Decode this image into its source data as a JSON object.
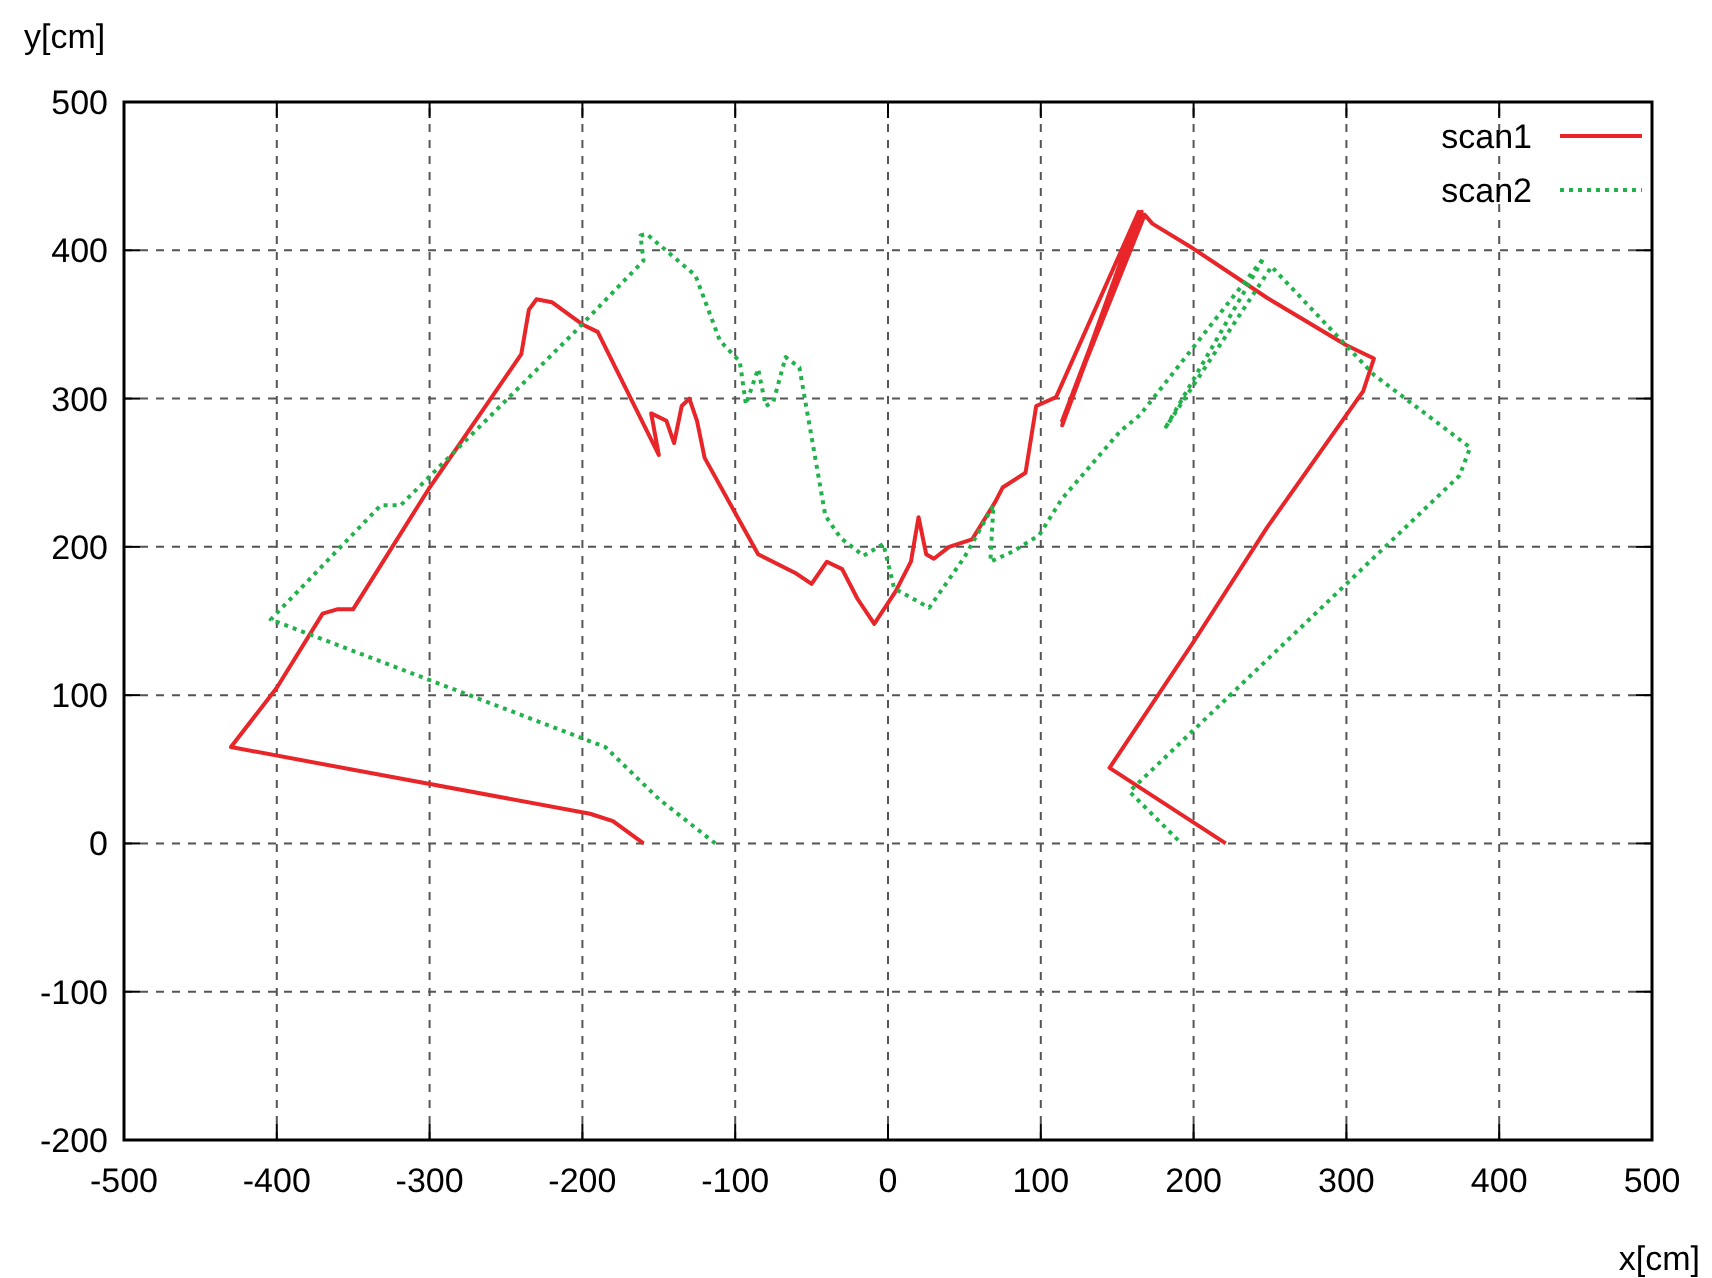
{
  "chart_data": {
    "type": "line",
    "xlabel": "x[cm]",
    "ylabel": "y[cm]",
    "xlim": [
      -500,
      500
    ],
    "ylim": [
      -200,
      500
    ],
    "xticks": [
      -500,
      -400,
      -300,
      -200,
      -100,
      0,
      100,
      200,
      300,
      400,
      500
    ],
    "yticks": [
      -200,
      -100,
      0,
      100,
      200,
      300,
      400,
      500
    ],
    "grid": true,
    "legend": "top right",
    "series": [
      {
        "name": "scan1",
        "color": "#e8262a",
        "line_style": "solid",
        "x": [
          -160,
          -180,
          -195,
          -430,
          -400,
          -370,
          -360,
          -350,
          -300,
          -260,
          -240,
          -235,
          -230,
          -220,
          -200,
          -190,
          -150,
          -155,
          -145,
          -140,
          -135,
          -130,
          -125,
          -120,
          -85,
          -60,
          -50,
          -40,
          -30,
          -20,
          -9,
          5,
          15,
          20,
          25,
          30,
          40,
          55,
          70,
          75,
          90,
          97,
          110,
          164,
          114,
          166,
          114,
          168,
          173,
          200,
          248,
          300,
          318,
          311,
          248,
          200,
          145,
          221
        ],
        "values": [
          0,
          15,
          20,
          65,
          105,
          155,
          158,
          158,
          240,
          300,
          330,
          360,
          367,
          365,
          350,
          345,
          262,
          290,
          285,
          270,
          295,
          300,
          285,
          260,
          195,
          182,
          175,
          190,
          185,
          165,
          148,
          170,
          190,
          220,
          195,
          192,
          200,
          205,
          230,
          240,
          250,
          295,
          301,
          426,
          282,
          426,
          285,
          424,
          418,
          401,
          368,
          336,
          327,
          305,
          213,
          136,
          51,
          0
        ]
      },
      {
        "name": "scan2",
        "color": "#22b24c",
        "line_style": "dotted",
        "x": [
          -113,
          -150,
          -185,
          -404,
          -332,
          -319,
          -205,
          -160,
          -162,
          -158,
          -126,
          -110,
          -97,
          -93,
          -85,
          -80,
          -75,
          -67,
          -58,
          -41,
          -31,
          -16,
          -3,
          4,
          27,
          50,
          69,
          67,
          82,
          99,
          113,
          116,
          152,
          165,
          246,
          182,
          251,
          318,
          381,
          374,
          158,
          191
        ],
        "values": [
          0,
          30,
          65,
          151,
          228,
          228,
          345,
          393,
          410,
          411,
          383,
          339,
          325,
          296,
          320,
          295,
          298,
          328,
          321,
          221,
          206,
          194,
          202,
          172,
          159,
          193,
          228,
          190,
          197,
          208,
          231,
          235,
          278,
          289,
          395,
          281,
          389,
          316,
          267,
          248,
          35,
          1
        ]
      }
    ]
  }
}
